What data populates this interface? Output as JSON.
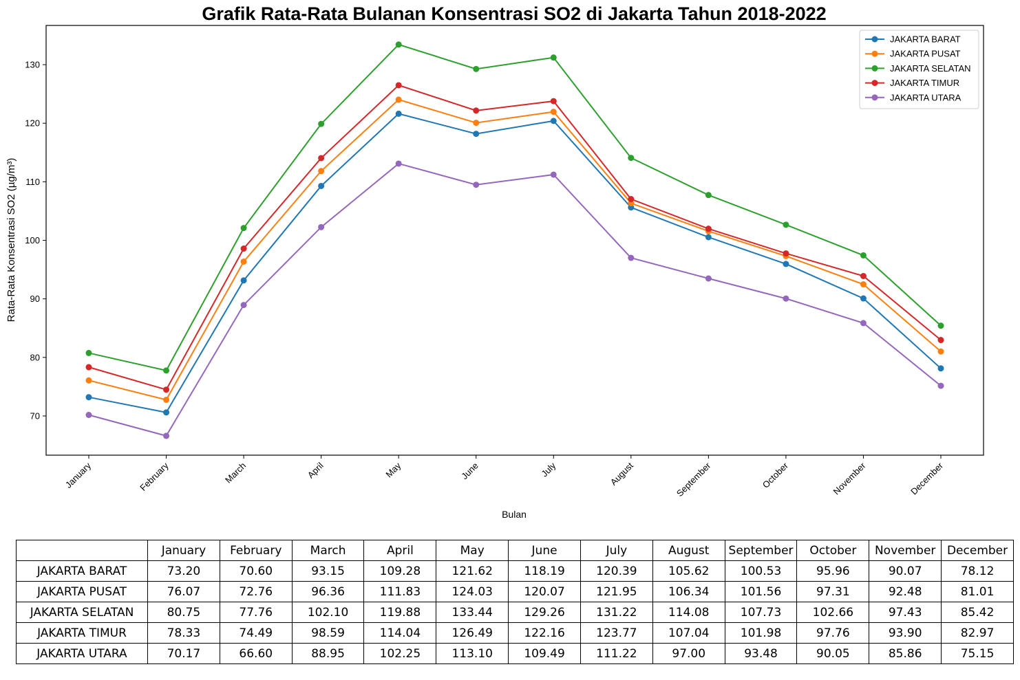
{
  "chart_data": {
    "type": "line",
    "title": "Grafik Rata-Rata Bulanan Konsentrasi SO2 di Jakarta Tahun 2018-2022",
    "xlabel": "Bulan",
    "ylabel": "Rata-Rata Konsentrasi SO2 (µg/m³)",
    "categories": [
      "January",
      "February",
      "March",
      "April",
      "May",
      "June",
      "July",
      "August",
      "September",
      "October",
      "November",
      "December"
    ],
    "ylim": [
      63.3,
      136.7
    ],
    "yticks": [
      70,
      80,
      90,
      100,
      110,
      120,
      130
    ],
    "grid": false,
    "legend_position": "top-right",
    "series": [
      {
        "name": "JAKARTA BARAT",
        "color": "#1f77b4",
        "values": [
          73.2,
          70.6,
          93.15,
          109.28,
          121.62,
          118.19,
          120.39,
          105.62,
          100.53,
          95.96,
          90.07,
          78.12
        ]
      },
      {
        "name": "JAKARTA PUSAT",
        "color": "#ff7f0e",
        "values": [
          76.07,
          72.76,
          96.36,
          111.83,
          124.03,
          120.07,
          121.95,
          106.34,
          101.56,
          97.31,
          92.48,
          81.01
        ]
      },
      {
        "name": "JAKARTA SELATAN",
        "color": "#2ca02c",
        "values": [
          80.75,
          77.76,
          102.1,
          119.88,
          133.44,
          129.26,
          131.22,
          114.08,
          107.73,
          102.66,
          97.43,
          85.42
        ]
      },
      {
        "name": "JAKARTA TIMUR",
        "color": "#d62728",
        "values": [
          78.33,
          74.49,
          98.59,
          114.04,
          126.49,
          122.16,
          123.77,
          107.04,
          101.98,
          97.76,
          93.9,
          82.97
        ]
      },
      {
        "name": "JAKARTA UTARA",
        "color": "#9467bd",
        "values": [
          70.17,
          66.6,
          88.95,
          102.25,
          113.1,
          109.49,
          111.22,
          97.0,
          93.48,
          90.05,
          85.86,
          75.15
        ]
      }
    ]
  },
  "table": {
    "columns": [
      "January",
      "February",
      "March",
      "April",
      "May",
      "June",
      "July",
      "August",
      "September",
      "October",
      "November",
      "December"
    ],
    "rows": [
      {
        "label": "JAKARTA BARAT",
        "cells": [
          "73.20",
          "70.60",
          "93.15",
          "109.28",
          "121.62",
          "118.19",
          "120.39",
          "105.62",
          "100.53",
          "95.96",
          "90.07",
          "78.12"
        ]
      },
      {
        "label": "JAKARTA PUSAT",
        "cells": [
          "76.07",
          "72.76",
          "96.36",
          "111.83",
          "124.03",
          "120.07",
          "121.95",
          "106.34",
          "101.56",
          "97.31",
          "92.48",
          "81.01"
        ]
      },
      {
        "label": "JAKARTA SELATAN",
        "cells": [
          "80.75",
          "77.76",
          "102.10",
          "119.88",
          "133.44",
          "129.26",
          "131.22",
          "114.08",
          "107.73",
          "102.66",
          "97.43",
          "85.42"
        ]
      },
      {
        "label": "JAKARTA TIMUR",
        "cells": [
          "78.33",
          "74.49",
          "98.59",
          "114.04",
          "126.49",
          "122.16",
          "123.77",
          "107.04",
          "101.98",
          "97.76",
          "93.90",
          "82.97"
        ]
      },
      {
        "label": "JAKARTA UTARA",
        "cells": [
          "70.17",
          "66.60",
          "88.95",
          "102.25",
          "113.10",
          "109.49",
          "111.22",
          "97.00",
          "93.48",
          "90.05",
          "85.86",
          "75.15"
        ]
      }
    ]
  }
}
